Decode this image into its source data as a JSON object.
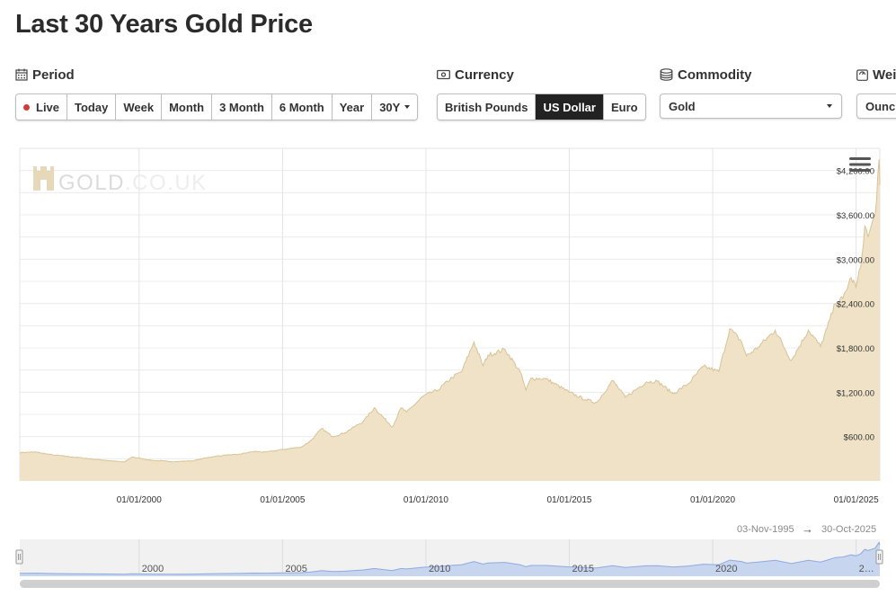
{
  "page": {
    "title": "Last 30 Years Gold Price"
  },
  "controls": {
    "period": {
      "label": "Period",
      "options": [
        "Live",
        "Today",
        "Week",
        "Month",
        "3 Month",
        "6 Month",
        "Year",
        "30Y"
      ],
      "selected": "30Y"
    },
    "currency": {
      "label": "Currency",
      "options": [
        "British Pounds",
        "US Dollar",
        "Euro"
      ],
      "selected": "US Dollar"
    },
    "commodity": {
      "label": "Commodity",
      "value": "Gold"
    },
    "weight": {
      "label": "Wei",
      "value": "Ounc"
    }
  },
  "watermark": {
    "brand": "GOLD",
    "suffix": ".CO.UK"
  },
  "range": {
    "from": "03-Nov-1995",
    "arrow": "→",
    "to": "30-Oct-2025"
  },
  "colors": {
    "area_fill": "#efe2c6",
    "area_line": "#d8c397",
    "navigator_fill": "#c7d5ef",
    "navigator_line": "#8faadf",
    "active_button": "#222222",
    "live_dot": "#d23b3b"
  },
  "chart_data": {
    "type": "area",
    "series": [
      {
        "x": [
          "1995-11-03",
          "1996-06-01",
          "1997-01-01",
          "1997-09-01",
          "1998-06-01",
          "1999-07-01",
          "1999-10-01",
          "2000-06-01",
          "2001-04-01",
          "2001-12-01",
          "2002-06-01",
          "2003-01-01",
          "2003-06-01",
          "2004-01-01",
          "2004-06-01",
          "2005-01-01",
          "2005-09-01",
          "2006-01-01",
          "2006-05-15",
          "2006-10-01",
          "2007-03-01",
          "2007-11-01",
          "2008-03-15",
          "2008-10-30",
          "2009-02-20",
          "2009-05-01",
          "2009-12-01",
          "2010-06-01",
          "2010-12-01",
          "2011-04-01",
          "2011-09-05",
          "2011-12-30",
          "2012-03-01",
          "2012-10-05",
          "2013-04-15",
          "2013-06-28",
          "2013-09-01",
          "2014-03-14",
          "2014-12-31",
          "2015-07-24",
          "2015-12-17",
          "2016-07-06",
          "2016-12-15",
          "2017-09-08",
          "2018-01-25",
          "2018-08-16",
          "2019-03-01",
          "2019-09-04",
          "2020-03-19",
          "2020-08-06",
          "2020-12-31",
          "2021-03-08",
          "2021-08-01",
          "2022-03-08",
          "2022-09-28",
          "2023-05-04",
          "2023-10-06",
          "2023-12-28",
          "2024-04-12",
          "2024-07-17",
          "2024-10-30",
          "2024-12-31",
          "2025-03-01",
          "2025-04-22",
          "2025-06-01",
          "2025-09-01",
          "2025-10-20",
          "2025-10-30"
        ],
        "y": [
          385,
          390,
          350,
          325,
          295,
          255,
          325,
          280,
          260,
          275,
          320,
          350,
          355,
          400,
          390,
          425,
          460,
          550,
          710,
          600,
          650,
          810,
          990,
          730,
          990,
          930,
          1150,
          1230,
          1400,
          1480,
          1880,
          1560,
          1700,
          1780,
          1480,
          1230,
          1390,
          1380,
          1200,
          1100,
          1060,
          1360,
          1130,
          1340,
          1350,
          1180,
          1320,
          1550,
          1480,
          2060,
          1890,
          1690,
          1810,
          2040,
          1630,
          2040,
          1820,
          2070,
          2400,
          2470,
          2750,
          2620,
          2900,
          3450,
          3300,
          3600,
          4350,
          4000
        ]
      }
    ],
    "xlabel": "",
    "ylabel": "",
    "xlim": [
      "1995-11-03",
      "2025-10-30"
    ],
    "ylim": [
      0,
      4500
    ],
    "y_ticks": [
      600,
      1200,
      1800,
      2400,
      3000,
      3600,
      4200
    ],
    "y_tick_labels": [
      "$600.00",
      "$1,200.00",
      "$1,800.00",
      "$2,400.00",
      "$3,000.00",
      "$3,600.00",
      "$4,200.00"
    ],
    "x_ticks": [
      "2000-01-01",
      "2005-01-01",
      "2010-01-01",
      "2015-01-01",
      "2020-01-01",
      "2025-01-01"
    ],
    "x_tick_labels": [
      "01/01/2000",
      "01/01/2005",
      "01/01/2010",
      "01/01/2015",
      "01/01/2020",
      "01/01/2025"
    ],
    "navigator_labels": [
      "2000",
      "2005",
      "2010",
      "2015",
      "2020",
      "2…"
    ],
    "grid": true
  }
}
